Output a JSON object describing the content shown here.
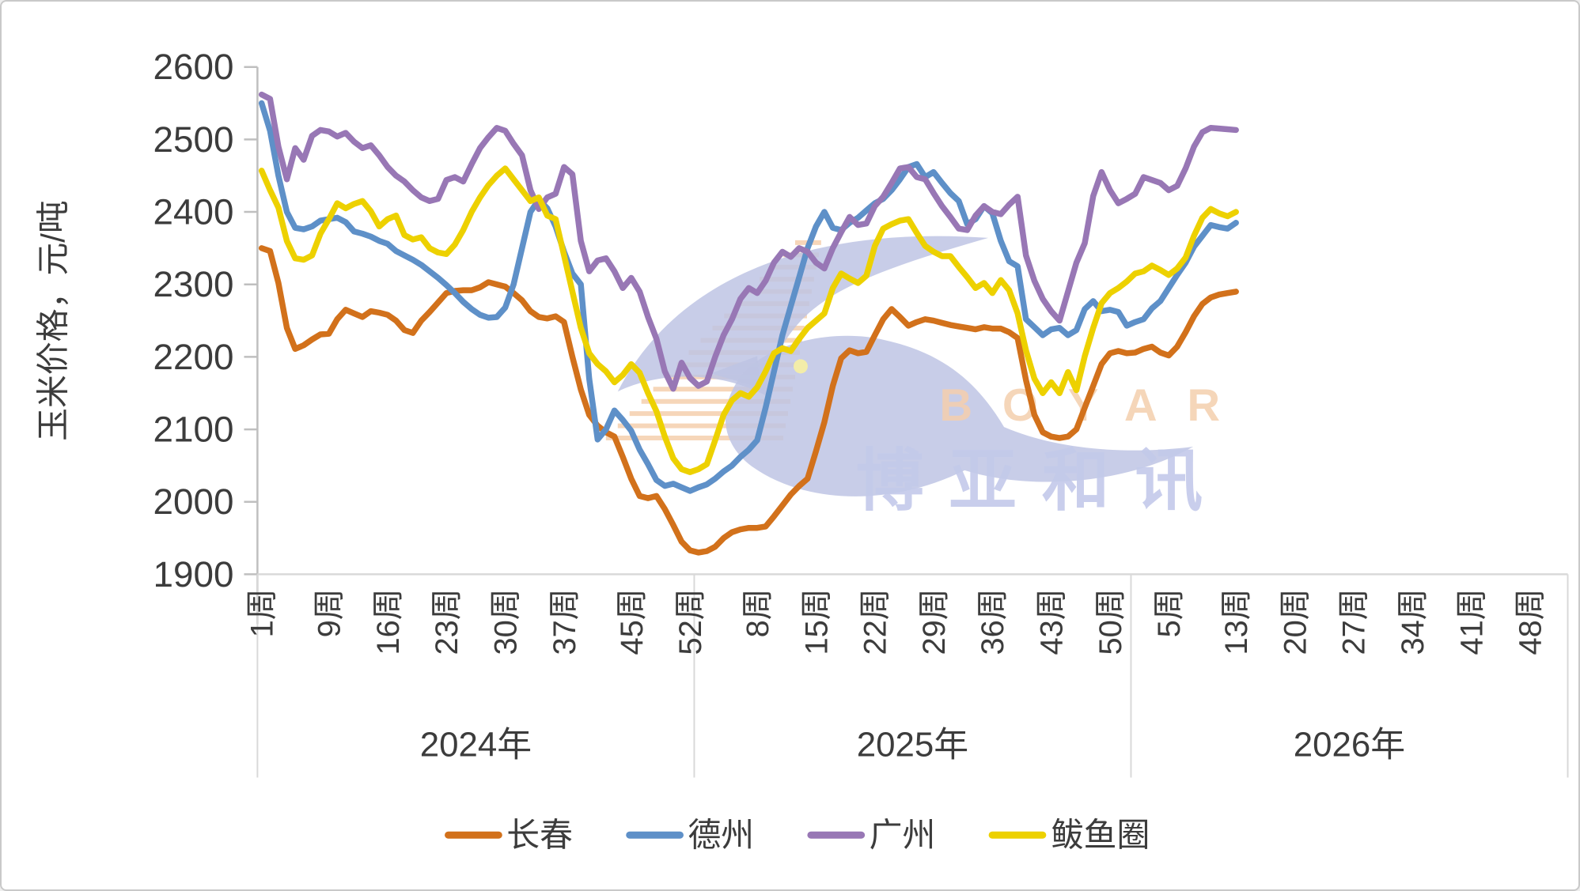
{
  "watermark": {
    "latin": "BOYAR",
    "cjk": "博亚和讯"
  },
  "chart_data": {
    "type": "line",
    "title": "",
    "ylabel": "玉米价格，元/吨",
    "xlabel": "",
    "ylim": [
      1900,
      2600
    ],
    "grid": false,
    "legend_position": "bottom",
    "y_axis": {
      "ticks": [
        2600,
        2500,
        2400,
        2300,
        2200,
        2100,
        2000,
        1900
      ],
      "tick_labels": [
        "2600",
        "2500",
        "2400",
        "2300",
        "2200",
        "2100",
        "2000",
        "1900"
      ]
    },
    "x_axis": {
      "unit": "周",
      "year_groups": [
        {
          "label": "2024年",
          "weeks": 52,
          "tick_weeks": [
            1,
            9,
            16,
            23,
            30,
            37,
            45,
            52
          ],
          "tick_labels": [
            "1周",
            "9周",
            "16周",
            "23周",
            "30周",
            "37周",
            "45周",
            "52周"
          ]
        },
        {
          "label": "2025年",
          "weeks": 52,
          "tick_weeks": [
            8,
            15,
            22,
            29,
            36,
            43,
            50
          ],
          "tick_labels": [
            "8周",
            "15周",
            "22周",
            "29周",
            "36周",
            "43周",
            "50周"
          ]
        },
        {
          "label": "2026年",
          "weeks": 52,
          "tick_weeks": [
            5,
            13,
            20,
            27,
            34,
            41,
            48
          ],
          "tick_labels": [
            "5周",
            "13周",
            "20周",
            "27周",
            "34周",
            "41周",
            "48周"
          ]
        }
      ]
    },
    "series": [
      {
        "name": "长春",
        "color": "#D2711B",
        "values": [
          2350,
          2346,
          2302,
          2240,
          2211,
          2216,
          2224,
          2231,
          2232,
          2252,
          2265,
          2260,
          2255,
          2263,
          2261,
          2258,
          2250,
          2237,
          2233,
          2250,
          2262,
          2275,
          2288,
          2291,
          2292,
          2292,
          2296,
          2303,
          2300,
          2297,
          2288,
          2278,
          2263,
          2255,
          2253,
          2256,
          2248,
          2200,
          2155,
          2120,
          2105,
          2096,
          2090,
          2062,
          2032,
          2008,
          2005,
          2008,
          1990,
          1968,
          1945,
          1933,
          1930,
          1932,
          1938,
          1950,
          1958,
          1962,
          1964,
          1964,
          1966,
          1980,
          1995,
          2010,
          2022,
          2032,
          2070,
          2110,
          2160,
          2198,
          2209,
          2205,
          2207,
          2230,
          2252,
          2266,
          2255,
          2243,
          2248,
          2252,
          2250,
          2247,
          2244,
          2242,
          2240,
          2238,
          2241,
          2239,
          2239,
          2234,
          2226,
          2168,
          2120,
          2096,
          2090,
          2088,
          2090,
          2100,
          2130,
          2160,
          2190,
          2205,
          2208,
          2205,
          2206,
          2211,
          2214,
          2206,
          2202,
          2214,
          2234,
          2256,
          2273,
          2282,
          2286,
          2288,
          2290
        ]
      },
      {
        "name": "德州",
        "color": "#5E90C8",
        "values": [
          2550,
          2512,
          2450,
          2400,
          2378,
          2376,
          2380,
          2388,
          2390,
          2392,
          2386,
          2373,
          2370,
          2366,
          2360,
          2356,
          2346,
          2340,
          2334,
          2327,
          2318,
          2309,
          2299,
          2288,
          2276,
          2266,
          2258,
          2254,
          2255,
          2268,
          2300,
          2350,
          2400,
          2417,
          2405,
          2380,
          2345,
          2315,
          2300,
          2170,
          2086,
          2100,
          2126,
          2113,
          2098,
          2072,
          2052,
          2030,
          2022,
          2025,
          2020,
          2015,
          2020,
          2024,
          2032,
          2042,
          2050,
          2062,
          2072,
          2085,
          2130,
          2180,
          2230,
          2270,
          2310,
          2350,
          2380,
          2400,
          2378,
          2375,
          2385,
          2392,
          2402,
          2412,
          2418,
          2430,
          2445,
          2462,
          2466,
          2448,
          2455,
          2440,
          2426,
          2415,
          2383,
          2390,
          2408,
          2398,
          2360,
          2332,
          2325,
          2252,
          2241,
          2230,
          2238,
          2240,
          2230,
          2237,
          2266,
          2277,
          2263,
          2265,
          2262,
          2243,
          2248,
          2252,
          2267,
          2277,
          2295,
          2313,
          2330,
          2352,
          2367,
          2382,
          2379,
          2377,
          2385
        ]
      },
      {
        "name": "广州",
        "color": "#9877B5",
        "values": [
          2562,
          2556,
          2490,
          2445,
          2488,
          2472,
          2505,
          2513,
          2511,
          2504,
          2509,
          2497,
          2488,
          2492,
          2478,
          2462,
          2450,
          2442,
          2430,
          2420,
          2415,
          2418,
          2444,
          2448,
          2442,
          2466,
          2488,
          2503,
          2516,
          2512,
          2494,
          2478,
          2430,
          2404,
          2420,
          2425,
          2462,
          2452,
          2360,
          2318,
          2333,
          2336,
          2318,
          2295,
          2309,
          2290,
          2255,
          2225,
          2180,
          2156,
          2192,
          2171,
          2160,
          2166,
          2200,
          2230,
          2252,
          2280,
          2295,
          2288,
          2305,
          2330,
          2345,
          2338,
          2350,
          2345,
          2330,
          2322,
          2350,
          2372,
          2393,
          2382,
          2384,
          2408,
          2421,
          2440,
          2460,
          2462,
          2448,
          2445,
          2426,
          2408,
          2393,
          2377,
          2375,
          2395,
          2408,
          2400,
          2397,
          2410,
          2421,
          2340,
          2305,
          2280,
          2263,
          2250,
          2290,
          2330,
          2357,
          2422,
          2455,
          2430,
          2412,
          2418,
          2425,
          2448,
          2444,
          2440,
          2430,
          2436,
          2460,
          2490,
          2510,
          2516,
          2515,
          2514,
          2513
        ]
      },
      {
        "name": "鲅鱼圈",
        "color": "#EDD100",
        "values": [
          2457,
          2430,
          2406,
          2360,
          2336,
          2334,
          2340,
          2370,
          2390,
          2412,
          2405,
          2411,
          2415,
          2401,
          2380,
          2390,
          2395,
          2368,
          2362,
          2365,
          2350,
          2344,
          2342,
          2355,
          2375,
          2400,
          2420,
          2437,
          2450,
          2460,
          2445,
          2430,
          2415,
          2420,
          2395,
          2390,
          2340,
          2290,
          2240,
          2205,
          2190,
          2180,
          2165,
          2175,
          2190,
          2178,
          2150,
          2125,
          2090,
          2060,
          2045,
          2041,
          2045,
          2052,
          2085,
          2120,
          2140,
          2150,
          2145,
          2158,
          2180,
          2205,
          2212,
          2208,
          2225,
          2240,
          2250,
          2260,
          2295,
          2315,
          2308,
          2302,
          2312,
          2353,
          2377,
          2383,
          2388,
          2390,
          2371,
          2353,
          2345,
          2339,
          2339,
          2324,
          2310,
          2295,
          2302,
          2288,
          2306,
          2292,
          2260,
          2209,
          2170,
          2150,
          2165,
          2150,
          2179,
          2154,
          2201,
          2240,
          2274,
          2288,
          2295,
          2304,
          2315,
          2318,
          2326,
          2320,
          2313,
          2322,
          2337,
          2367,
          2392,
          2404,
          2398,
          2394,
          2400
        ]
      }
    ]
  }
}
